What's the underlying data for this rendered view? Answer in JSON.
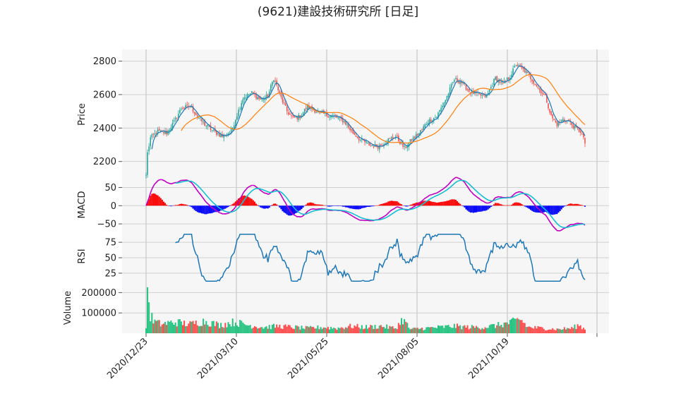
{
  "title": "(9621)建設技術研究所 [日足]",
  "chart_data": [
    {
      "panel": "price",
      "type": "candlestick",
      "ylabel": "Price",
      "ylim": [
        2110,
        2870
      ],
      "yticks": [
        2200,
        2400,
        2600,
        2800
      ],
      "grid": true,
      "x_tick_labels": [
        "2020/12/23",
        "2021/03/10",
        "2021/05/25",
        "2021/08/05",
        "2021/10/19"
      ],
      "close_keypoints": [
        [
          0,
          2120
        ],
        [
          1,
          2250
        ],
        [
          3,
          2340
        ],
        [
          8,
          2380
        ],
        [
          14,
          2370
        ],
        [
          20,
          2450
        ],
        [
          24,
          2520
        ],
        [
          30,
          2530
        ],
        [
          35,
          2470
        ],
        [
          40,
          2420
        ],
        [
          46,
          2380
        ],
        [
          52,
          2350
        ],
        [
          58,
          2380
        ],
        [
          62,
          2480
        ],
        [
          66,
          2580
        ],
        [
          72,
          2610
        ],
        [
          78,
          2570
        ],
        [
          83,
          2590
        ],
        [
          87,
          2700
        ],
        [
          92,
          2580
        ],
        [
          96,
          2500
        ],
        [
          100,
          2460
        ],
        [
          105,
          2470
        ],
        [
          110,
          2530
        ],
        [
          116,
          2500
        ],
        [
          122,
          2480
        ],
        [
          128,
          2470
        ],
        [
          135,
          2440
        ],
        [
          140,
          2380
        ],
        [
          146,
          2330
        ],
        [
          152,
          2300
        ],
        [
          158,
          2290
        ],
        [
          165,
          2330
        ],
        [
          170,
          2350
        ],
        [
          176,
          2280
        ],
        [
          181,
          2330
        ],
        [
          186,
          2370
        ],
        [
          192,
          2440
        ],
        [
          198,
          2470
        ],
        [
          204,
          2570
        ],
        [
          210,
          2690
        ],
        [
          214,
          2680
        ],
        [
          220,
          2620
        ],
        [
          226,
          2600
        ],
        [
          232,
          2590
        ],
        [
          238,
          2700
        ],
        [
          243,
          2660
        ],
        [
          248,
          2710
        ],
        [
          252,
          2780
        ],
        [
          258,
          2740
        ],
        [
          262,
          2700
        ],
        [
          268,
          2630
        ],
        [
          272,
          2590
        ],
        [
          276,
          2470
        ],
        [
          280,
          2420
        ],
        [
          284,
          2450
        ],
        [
          288,
          2440
        ],
        [
          292,
          2400
        ],
        [
          296,
          2380
        ],
        [
          299,
          2310
        ]
      ],
      "ma_short_label": "",
      "ma_long_label": "",
      "colors": {
        "up": "#26a69a",
        "down": "#ef5350",
        "ma_short": "#1f77b4",
        "ma_long": "#ff7f0e"
      }
    },
    {
      "panel": "macd",
      "type": "line+bar",
      "ylabel": "MACD",
      "ylim": [
        -75,
        80
      ],
      "yticks": [
        50,
        0,
        -50
      ],
      "series": [
        {
          "values_note_colors": "#bf00bf"
        },
        {
          "values_note_colors": "#17becf"
        }
      ],
      "colors": {
        "macd": "#bf00bf",
        "signal": "#17becf",
        "hist_pos": "#ff0000",
        "hist_neg": "#0000ff"
      }
    },
    {
      "panel": "rsi",
      "type": "line",
      "ylabel": "RSI",
      "ylim": [
        10,
        90
      ],
      "yticks": [
        75,
        50,
        25
      ],
      "colors": {
        "rsi": "#1f77b4"
      }
    },
    {
      "panel": "volume",
      "type": "bar",
      "ylabel": "Volume",
      "ylim": [
        0,
        250000
      ],
      "yticks": [
        200000,
        100000
      ],
      "volume_keypoints": [
        [
          0,
          30000
        ],
        [
          1,
          240000
        ],
        [
          2,
          140000
        ],
        [
          3,
          90000
        ],
        [
          5,
          60000
        ],
        [
          10,
          45000
        ],
        [
          20,
          55000
        ],
        [
          30,
          45000
        ],
        [
          40,
          60000
        ],
        [
          50,
          40000
        ],
        [
          60,
          55000
        ],
        [
          70,
          40000
        ],
        [
          80,
          30000
        ],
        [
          90,
          35000
        ],
        [
          100,
          30000
        ],
        [
          110,
          25000
        ],
        [
          120,
          30000
        ],
        [
          130,
          25000
        ],
        [
          140,
          35000
        ],
        [
          150,
          30000
        ],
        [
          160,
          35000
        ],
        [
          170,
          25000
        ],
        [
          175,
          70000
        ],
        [
          180,
          20000
        ],
        [
          190,
          25000
        ],
        [
          200,
          30000
        ],
        [
          210,
          35000
        ],
        [
          220,
          30000
        ],
        [
          230,
          30000
        ],
        [
          240,
          40000
        ],
        [
          250,
          55000
        ],
        [
          255,
          70000
        ],
        [
          260,
          30000
        ],
        [
          270,
          25000
        ],
        [
          280,
          20000
        ],
        [
          290,
          25000
        ],
        [
          295,
          40000
        ],
        [
          299,
          20000
        ]
      ],
      "colors": {
        "up": "#26c281",
        "down": "#ff4d4d"
      }
    }
  ]
}
